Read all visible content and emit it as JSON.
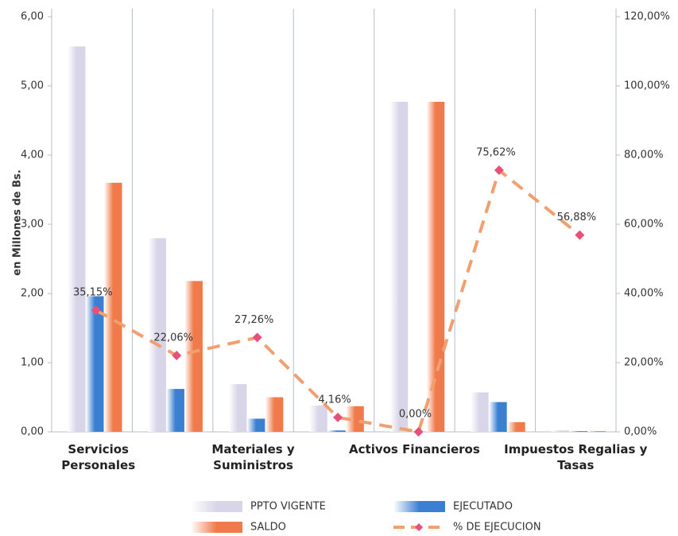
{
  "chart_data": {
    "type": "bar",
    "y_axis_label": "en Millones de Bs.",
    "categories": [
      "Servicios Personales",
      null,
      "Materiales y Suministros",
      null,
      "Activos Financieros",
      null,
      "Impuestos Regalias y Tasas"
    ],
    "series": [
      {
        "name": "PPTO VIGENTE",
        "color": "#d9d5e8",
        "values": [
          5.57,
          2.8,
          0.69,
          0.38,
          4.77,
          0.57,
          0.02
        ]
      },
      {
        "name": "EJECUTADO",
        "color": "#3b7fd2",
        "values": [
          1.96,
          0.62,
          0.19,
          0.02,
          0,
          0.43,
          0.01
        ]
      },
      {
        "name": "SALDO",
        "color": "#f07a4a",
        "values": [
          3.6,
          2.18,
          0.5,
          0.37,
          4.77,
          0.14,
          0.01
        ]
      },
      {
        "name": "% DE EJECUCION",
        "type": "line",
        "axis": "y2",
        "color": "#f0a070",
        "marker_color": "#e8507a",
        "values": [
          35.15,
          22.06,
          27.26,
          4.16,
          0,
          75.62,
          56.88
        ],
        "value_labels": [
          "35,15%",
          "22,06%",
          "27,26%",
          "4,16%",
          "0,00%",
          "75,62%",
          "56,88%"
        ]
      }
    ],
    "ylim": [
      0,
      6
    ],
    "yticks": [
      {
        "value": 0,
        "label": "0,00"
      },
      {
        "value": 1,
        "label": "1,00"
      },
      {
        "value": 2,
        "label": "2,00"
      },
      {
        "value": 3,
        "label": "3,00"
      },
      {
        "value": 4,
        "label": "4,00"
      },
      {
        "value": 5,
        "label": "5,00"
      },
      {
        "value": 6,
        "label": "6,00"
      }
    ],
    "y2lim": [
      0,
      120
    ],
    "y2ticks": [
      {
        "value": 0,
        "label": "0,00%"
      },
      {
        "value": 20,
        "label": "20,00%"
      },
      {
        "value": 40,
        "label": "40,00%"
      },
      {
        "value": 60,
        "label": "60,00%"
      },
      {
        "value": 80,
        "label": "80,00%"
      },
      {
        "value": 100,
        "label": "100,00%"
      },
      {
        "value": 120,
        "label": "120,00%"
      }
    ],
    "legend": "bottom"
  }
}
